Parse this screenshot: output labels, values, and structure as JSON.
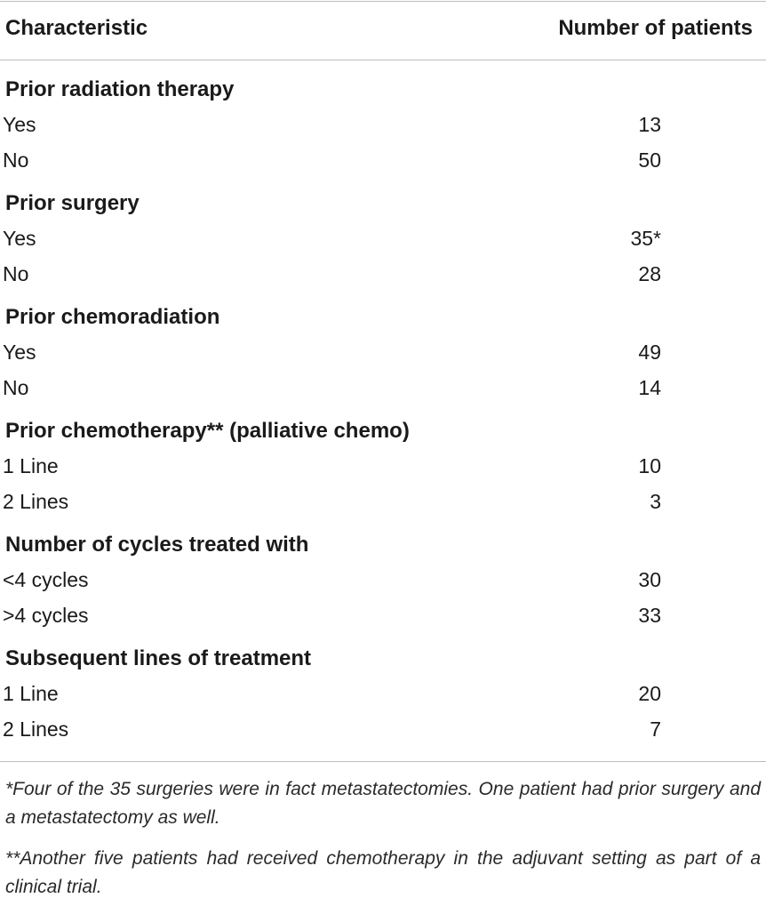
{
  "header": {
    "col1": "Characteristic",
    "col2": "Number of patients"
  },
  "sections": [
    {
      "title": "Prior radiation therapy",
      "rows": [
        {
          "label": "Yes",
          "value": "13"
        },
        {
          "label": "No",
          "value": "50"
        }
      ]
    },
    {
      "title": "Prior surgery",
      "rows": [
        {
          "label": "Yes",
          "value": "35*"
        },
        {
          "label": "No",
          "value": "28"
        }
      ]
    },
    {
      "title": "Prior chemoradiation",
      "rows": [
        {
          "label": "Yes",
          "value": "49"
        },
        {
          "label": "No",
          "value": "14"
        }
      ]
    },
    {
      "title": "Prior chemotherapy** (palliative chemo)",
      "rows": [
        {
          "label": "1 Line",
          "value": "10"
        },
        {
          "label": "2 Lines",
          "value": "3"
        }
      ]
    },
    {
      "title": "Number of cycles treated with",
      "rows": [
        {
          "label": "<4 cycles",
          "value": "30"
        },
        {
          "label": ">4 cycles",
          "value": "33"
        }
      ]
    },
    {
      "title": "Subsequent lines of treatment",
      "rows": [
        {
          "label": "1 Line",
          "value": "20"
        },
        {
          "label": "2 Lines",
          "value": "7"
        }
      ]
    }
  ],
  "footnotes": [
    "*Four of the 35 surgeries were in fact metastatectomies. One patient had prior surgery and a metastatectomy as well.",
    "**Another five patients had received chemotherapy in the adjuvant setting as part of a clinical trial."
  ]
}
